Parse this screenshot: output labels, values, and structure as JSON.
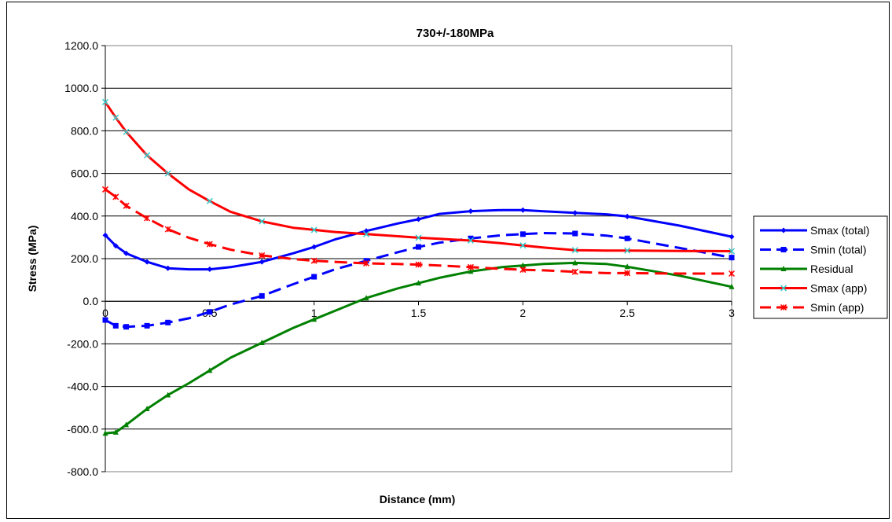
{
  "chart_data": {
    "type": "line",
    "title": "730+/-180MPa",
    "xlabel": "Distance (mm)",
    "ylabel": "Stress (MPa)",
    "xlim": [
      0,
      3
    ],
    "ylim": [
      -800,
      1200
    ],
    "x_ticks": [
      "0",
      "0.5",
      "1",
      "1.5",
      "2",
      "2.5",
      "3"
    ],
    "y_ticks": [
      "1200.0",
      "1000.0",
      "800.0",
      "600.0",
      "400.0",
      "200.0",
      "0.0",
      "-200.0",
      "-400.0",
      "-600.0",
      "-800.0"
    ],
    "grid": "horizontal",
    "legend_position": "right",
    "series": [
      {
        "name": "Smax (total)",
        "color": "#0000ff",
        "dash": "solid",
        "marker": "diamond",
        "points": [
          [
            0,
            310
          ],
          [
            0.05,
            260
          ],
          [
            0.1,
            225
          ],
          [
            0.2,
            185
          ],
          [
            0.3,
            155
          ],
          [
            0.4,
            150
          ],
          [
            0.5,
            150
          ],
          [
            0.6,
            160
          ],
          [
            0.75,
            185
          ],
          [
            0.9,
            225
          ],
          [
            1.0,
            255
          ],
          [
            1.1,
            290
          ],
          [
            1.25,
            330
          ],
          [
            1.4,
            365
          ],
          [
            1.5,
            385
          ],
          [
            1.6,
            410
          ],
          [
            1.75,
            423
          ],
          [
            1.9,
            428
          ],
          [
            2.0,
            428
          ],
          [
            2.1,
            422
          ],
          [
            2.25,
            415
          ],
          [
            2.4,
            408
          ],
          [
            2.5,
            398
          ],
          [
            2.75,
            355
          ],
          [
            3.0,
            303
          ]
        ]
      },
      {
        "name": "Smin (total)",
        "color": "#0000ff",
        "dash": "dashed",
        "marker": "square",
        "points": [
          [
            0,
            -88
          ],
          [
            0.05,
            -115
          ],
          [
            0.1,
            -120
          ],
          [
            0.2,
            -115
          ],
          [
            0.3,
            -100
          ],
          [
            0.4,
            -80
          ],
          [
            0.5,
            -50
          ],
          [
            0.6,
            -15
          ],
          [
            0.75,
            25
          ],
          [
            0.9,
            80
          ],
          [
            1.0,
            115
          ],
          [
            1.1,
            150
          ],
          [
            1.25,
            190
          ],
          [
            1.4,
            230
          ],
          [
            1.5,
            255
          ],
          [
            1.6,
            275
          ],
          [
            1.75,
            295
          ],
          [
            1.9,
            310
          ],
          [
            2.0,
            315
          ],
          [
            2.1,
            320
          ],
          [
            2.25,
            318
          ],
          [
            2.4,
            308
          ],
          [
            2.5,
            295
          ],
          [
            2.75,
            250
          ],
          [
            3.0,
            205
          ]
        ]
      },
      {
        "name": "Residual",
        "color": "#008000",
        "dash": "solid",
        "marker": "triangle",
        "points": [
          [
            0,
            -620
          ],
          [
            0.05,
            -615
          ],
          [
            0.1,
            -580
          ],
          [
            0.2,
            -505
          ],
          [
            0.3,
            -440
          ],
          [
            0.4,
            -385
          ],
          [
            0.5,
            -325
          ],
          [
            0.6,
            -265
          ],
          [
            0.75,
            -195
          ],
          [
            0.9,
            -125
          ],
          [
            1.0,
            -85
          ],
          [
            1.1,
            -45
          ],
          [
            1.25,
            15
          ],
          [
            1.4,
            60
          ],
          [
            1.5,
            85
          ],
          [
            1.6,
            110
          ],
          [
            1.75,
            140
          ],
          [
            1.9,
            160
          ],
          [
            2.0,
            168
          ],
          [
            2.1,
            175
          ],
          [
            2.25,
            180
          ],
          [
            2.4,
            175
          ],
          [
            2.5,
            162
          ],
          [
            2.75,
            120
          ],
          [
            3.0,
            68
          ]
        ]
      },
      {
        "name": "Smax (app)",
        "color": "#ff0000",
        "dash": "solid",
        "marker": "x",
        "points": [
          [
            0,
            935
          ],
          [
            0.05,
            862
          ],
          [
            0.1,
            795
          ],
          [
            0.2,
            685
          ],
          [
            0.3,
            600
          ],
          [
            0.4,
            525
          ],
          [
            0.5,
            470
          ],
          [
            0.6,
            420
          ],
          [
            0.75,
            375
          ],
          [
            0.9,
            345
          ],
          [
            1.0,
            335
          ],
          [
            1.1,
            325
          ],
          [
            1.25,
            315
          ],
          [
            1.4,
            305
          ],
          [
            1.5,
            298
          ],
          [
            1.6,
            293
          ],
          [
            1.75,
            285
          ],
          [
            1.9,
            272
          ],
          [
            2.0,
            262
          ],
          [
            2.1,
            252
          ],
          [
            2.25,
            240
          ],
          [
            2.4,
            238
          ],
          [
            2.5,
            238
          ],
          [
            2.75,
            236
          ],
          [
            3.0,
            235
          ]
        ]
      },
      {
        "name": "Smin (app)",
        "color": "#ff0000",
        "dash": "dashed",
        "marker": "star",
        "points": [
          [
            0,
            525
          ],
          [
            0.05,
            490
          ],
          [
            0.1,
            448
          ],
          [
            0.2,
            390
          ],
          [
            0.3,
            338
          ],
          [
            0.4,
            298
          ],
          [
            0.5,
            268
          ],
          [
            0.6,
            242
          ],
          [
            0.75,
            215
          ],
          [
            0.9,
            198
          ],
          [
            1.0,
            190
          ],
          [
            1.1,
            185
          ],
          [
            1.25,
            178
          ],
          [
            1.4,
            175
          ],
          [
            1.5,
            172
          ],
          [
            1.6,
            168
          ],
          [
            1.75,
            160
          ],
          [
            1.9,
            152
          ],
          [
            2.0,
            148
          ],
          [
            2.1,
            145
          ],
          [
            2.25,
            138
          ],
          [
            2.4,
            132
          ],
          [
            2.5,
            132
          ],
          [
            2.75,
            130
          ],
          [
            3.0,
            130
          ]
        ]
      }
    ]
  }
}
